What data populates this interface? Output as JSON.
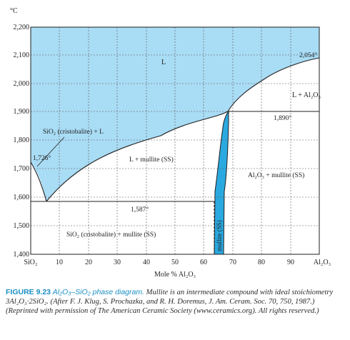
{
  "figure": {
    "unit_label": "°C",
    "x_axis_title": "Mole % Al₂O₃",
    "y_ticks": [
      "1,400",
      "1,500",
      "1,600",
      "1,700",
      "1,800",
      "1,900",
      "2,000",
      "2,100",
      "2,200"
    ],
    "x_ticks": [
      "SiO₂",
      "10",
      "20",
      "30",
      "40",
      "50",
      "60",
      "70",
      "80",
      "90",
      "Al₂O₃"
    ],
    "region_labels": {
      "liquid": "L",
      "l_al2o3": "L + Al₂O₃",
      "sio2_l": "SiO₂ (cristobalite) + L",
      "l_mullite": "L + mullite (SS)",
      "al2o3_mullite": "Al₂O₃ + mullite (SS)",
      "sio2_mullite": "SiO₂ (cristobalite) + mullite (SS)",
      "mullite_ss": "mullite (SS)"
    },
    "temperature_labels": {
      "t2054": "2,054°",
      "t1890": "1,890°",
      "t1726": "1,726°",
      "t1587": "1,587°"
    },
    "colors": {
      "liquid_fill": "#a9dcf5",
      "mullite_fill": "#2aa9e0",
      "line": "#1f1f1f",
      "grid": "#555555",
      "caption_accent": "#1a8fc4"
    }
  },
  "caption": {
    "label": "FIGURE 9.23",
    "title": "Al₂O₃–SiO₂ phase diagram.",
    "body": "Mullite is an intermediate compound with ideal stoichiometry 3Al₂O₃·2SiO₂. (After F. J. Klug, S. Prochazka, and R. H. Doremus, J. Am. Ceram. Soc. 70, 750, 1987.) (Reprinted with permission of The American Ceramic Society (www.ceramics.org). All rights reserved.)"
  }
}
